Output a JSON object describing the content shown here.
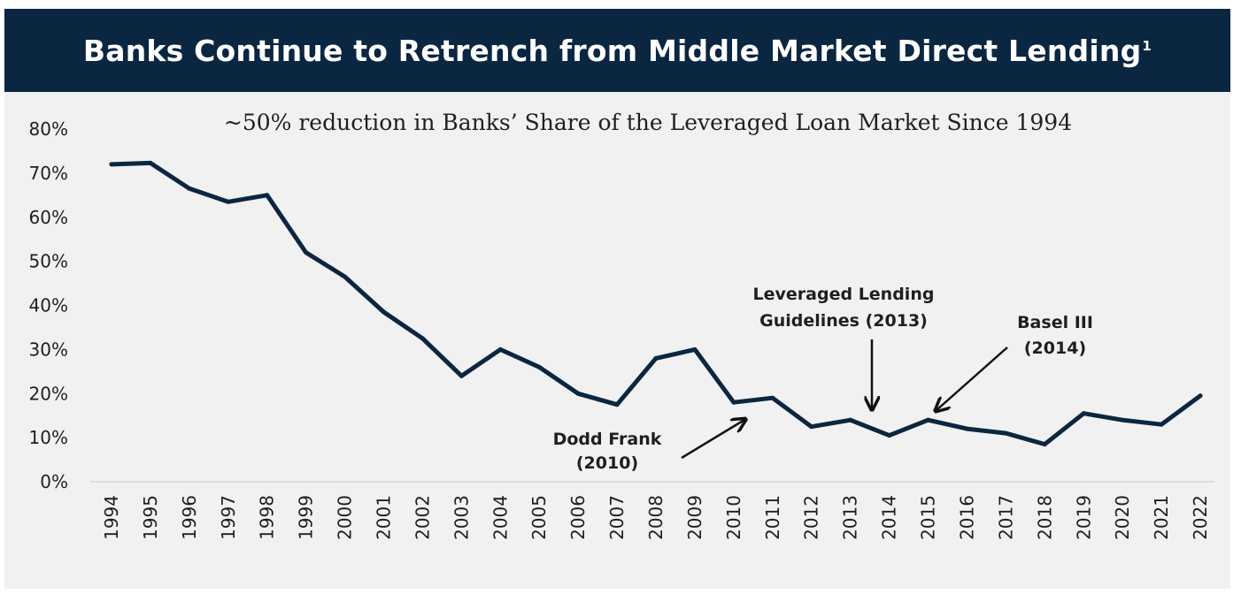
{
  "header": {
    "title": "Banks Continue to Retrench from Middle Market Direct Lending",
    "footnote": "1"
  },
  "colors": {
    "header_bg": "#0b2640",
    "panel_bg": "#f1f1f1",
    "line": "#0b2640",
    "text": "#1f1f1f"
  },
  "chart_data": {
    "type": "line",
    "title": "Banks Continue to Retrench from Middle Market Direct Lending",
    "subtitle": "~50% reduction in Banks’ Share of the Leveraged Loan Market Since 1994",
    "xlabel": "",
    "ylabel": "",
    "ylim": [
      0,
      80
    ],
    "grid": false,
    "y_ticks": [
      "0%",
      "10%",
      "20%",
      "30%",
      "40%",
      "50%",
      "60%",
      "70%",
      "80%"
    ],
    "categories": [
      "1994",
      "1995",
      "1996",
      "1997",
      "1998",
      "1999",
      "2000",
      "2001",
      "2002",
      "2003",
      "2004",
      "2005",
      "2006",
      "2007",
      "2008",
      "2009",
      "2010",
      "2011",
      "2012",
      "2013",
      "2014",
      "2015",
      "2016",
      "2017",
      "2018",
      "2019",
      "2020",
      "2021",
      "2022"
    ],
    "series": [
      {
        "name": "Banks' share of leveraged loan market",
        "values": [
          72,
          72.3,
          66.5,
          63.5,
          65,
          52,
          46.5,
          38.5,
          32.5,
          24,
          30,
          26,
          20,
          17.5,
          28,
          30,
          18,
          19,
          12.5,
          14,
          10.5,
          14,
          12,
          11,
          8.5,
          15.5,
          14,
          13,
          19.5
        ]
      }
    ],
    "annotations": [
      {
        "lines": [
          "Dodd Frank",
          "(2010)"
        ],
        "year": "2010"
      },
      {
        "lines": [
          "Leveraged Lending",
          "Guidelines (2013)"
        ],
        "year": "2013"
      },
      {
        "lines": [
          "Basel III",
          "(2014)"
        ],
        "year": "2014"
      }
    ]
  }
}
